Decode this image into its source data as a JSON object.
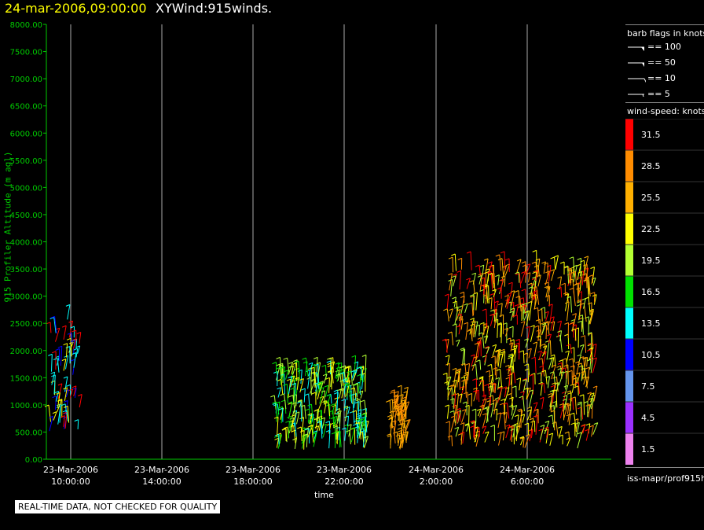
{
  "header": {
    "date_time": "24-mar-2006,09:00:00",
    "product": "XYWind:915winds."
  },
  "footer": {
    "quality_notice": "REAL-TIME DATA, NOT CHECKED FOR QUALITY"
  },
  "legend": {
    "barb_title": "barb flags in knots",
    "barbs": [
      {
        "label": "== 100",
        "kind": "flag"
      },
      {
        "label": "== 50",
        "kind": "flag"
      },
      {
        "label": "== 10",
        "kind": "full"
      },
      {
        "label": "== 5",
        "kind": "half"
      }
    ],
    "speed_title": "wind-speed: knots",
    "source": "iss-mapr/prof915h"
  },
  "colors": {
    "title_date": "#ffff00",
    "axis_text": "#00cc00",
    "grid": "#aaaaaa"
  },
  "chart_data": {
    "type": "scatter",
    "title": "XYWind:915winds.",
    "xlabel": "time",
    "ylabel": "915 Profiler Altitude (m agl)",
    "ylim": [
      0,
      8000
    ],
    "y_ticks": [
      "0.00",
      "500.00",
      "1000.00",
      "1500.00",
      "2000.00",
      "2500.00",
      "3000.00",
      "3500.00",
      "4000.00",
      "4500.00",
      "5000.00",
      "5500.00",
      "6000.00",
      "6500.00",
      "7000.00",
      "7500.00",
      "8000.00"
    ],
    "x_ticks": [
      {
        "date": "23-Mar-2006",
        "time": "10:00:00"
      },
      {
        "date": "23-Mar-2006",
        "time": "14:00:00"
      },
      {
        "date": "23-Mar-2006",
        "time": "18:00:00"
      },
      {
        "date": "23-Mar-2006",
        "time": "22:00:00"
      },
      {
        "date": "24-Mar-2006",
        "time": "2:00:00"
      },
      {
        "date": "24-Mar-2006",
        "time": "6:00:00"
      }
    ],
    "grid": "vertical at time ticks",
    "colorbar": {
      "label": "wind-speed: knots",
      "bins": [
        {
          "label": "31.5",
          "color": "#ff0000"
        },
        {
          "label": "28.5",
          "color": "#ff8c00"
        },
        {
          "label": "25.5",
          "color": "#ffb000"
        },
        {
          "label": "22.5",
          "color": "#ffff00"
        },
        {
          "label": "19.5",
          "color": "#b4ff32"
        },
        {
          "label": "16.5",
          "color": "#00e000"
        },
        {
          "label": "13.5",
          "color": "#00ffff"
        },
        {
          "label": "10.5",
          "color": "#0000ff"
        },
        {
          "label": "7.5",
          "color": "#6495ed"
        },
        {
          "label": "4.5",
          "color": "#9b30ff"
        },
        {
          "label": "1.5",
          "color": "#ee82ee"
        }
      ]
    },
    "wind_clusters": [
      {
        "period": "23-Mar 09:00–10:30",
        "alt_range_m": [
          500,
          2600
        ],
        "dominant_speeds_kts": [
          10.5,
          13.5,
          22.5,
          31.5
        ]
      },
      {
        "period": "23-Mar 19:00–23:00",
        "alt_range_m": [
          150,
          1600
        ],
        "dominant_speeds_kts": [
          13.5,
          16.5,
          19.5,
          22.5
        ]
      },
      {
        "period": "24-Mar 00:00–00:45",
        "alt_range_m": [
          150,
          1050
        ],
        "dominant_speeds_kts": [
          25.5,
          28.5
        ]
      },
      {
        "period": "24-Mar 02:30–09:00",
        "alt_range_m": [
          200,
          3500
        ],
        "dominant_speeds_kts": [
          19.5,
          22.5,
          25.5,
          28.5,
          31.5
        ]
      }
    ]
  }
}
